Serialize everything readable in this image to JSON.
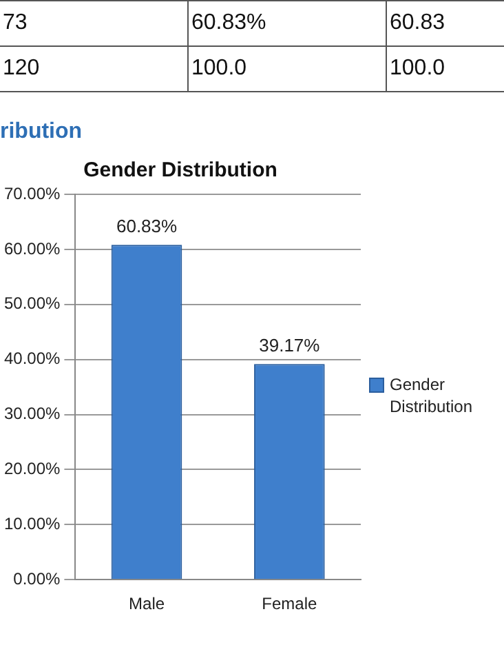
{
  "chart_data": {
    "type": "bar",
    "title": "Gender Distribution",
    "categories": [
      "Male",
      "Female"
    ],
    "series": [
      {
        "name": "Gender Distribution",
        "color": "#3f7fcc",
        "values": [
          60.83,
          39.17
        ]
      }
    ],
    "value_labels": [
      "60.83%",
      "39.17%"
    ],
    "ylim": [
      0,
      70
    ],
    "yticks": [
      {
        "value": 0,
        "label": "0.00%"
      },
      {
        "value": 10,
        "label": "10.00%"
      },
      {
        "value": 20,
        "label": "20.00%"
      },
      {
        "value": 30,
        "label": "30.00%"
      },
      {
        "value": 40,
        "label": "40.00%"
      },
      {
        "value": 50,
        "label": "50.00%"
      },
      {
        "value": 60,
        "label": "60.00%"
      },
      {
        "value": 70,
        "label": "70.00%"
      }
    ],
    "grid": "y",
    "legend": "right",
    "annotations": [
      "73",
      "60.83%",
      "60.83",
      "120",
      "100.0",
      "100.0",
      "ribution"
    ]
  }
}
